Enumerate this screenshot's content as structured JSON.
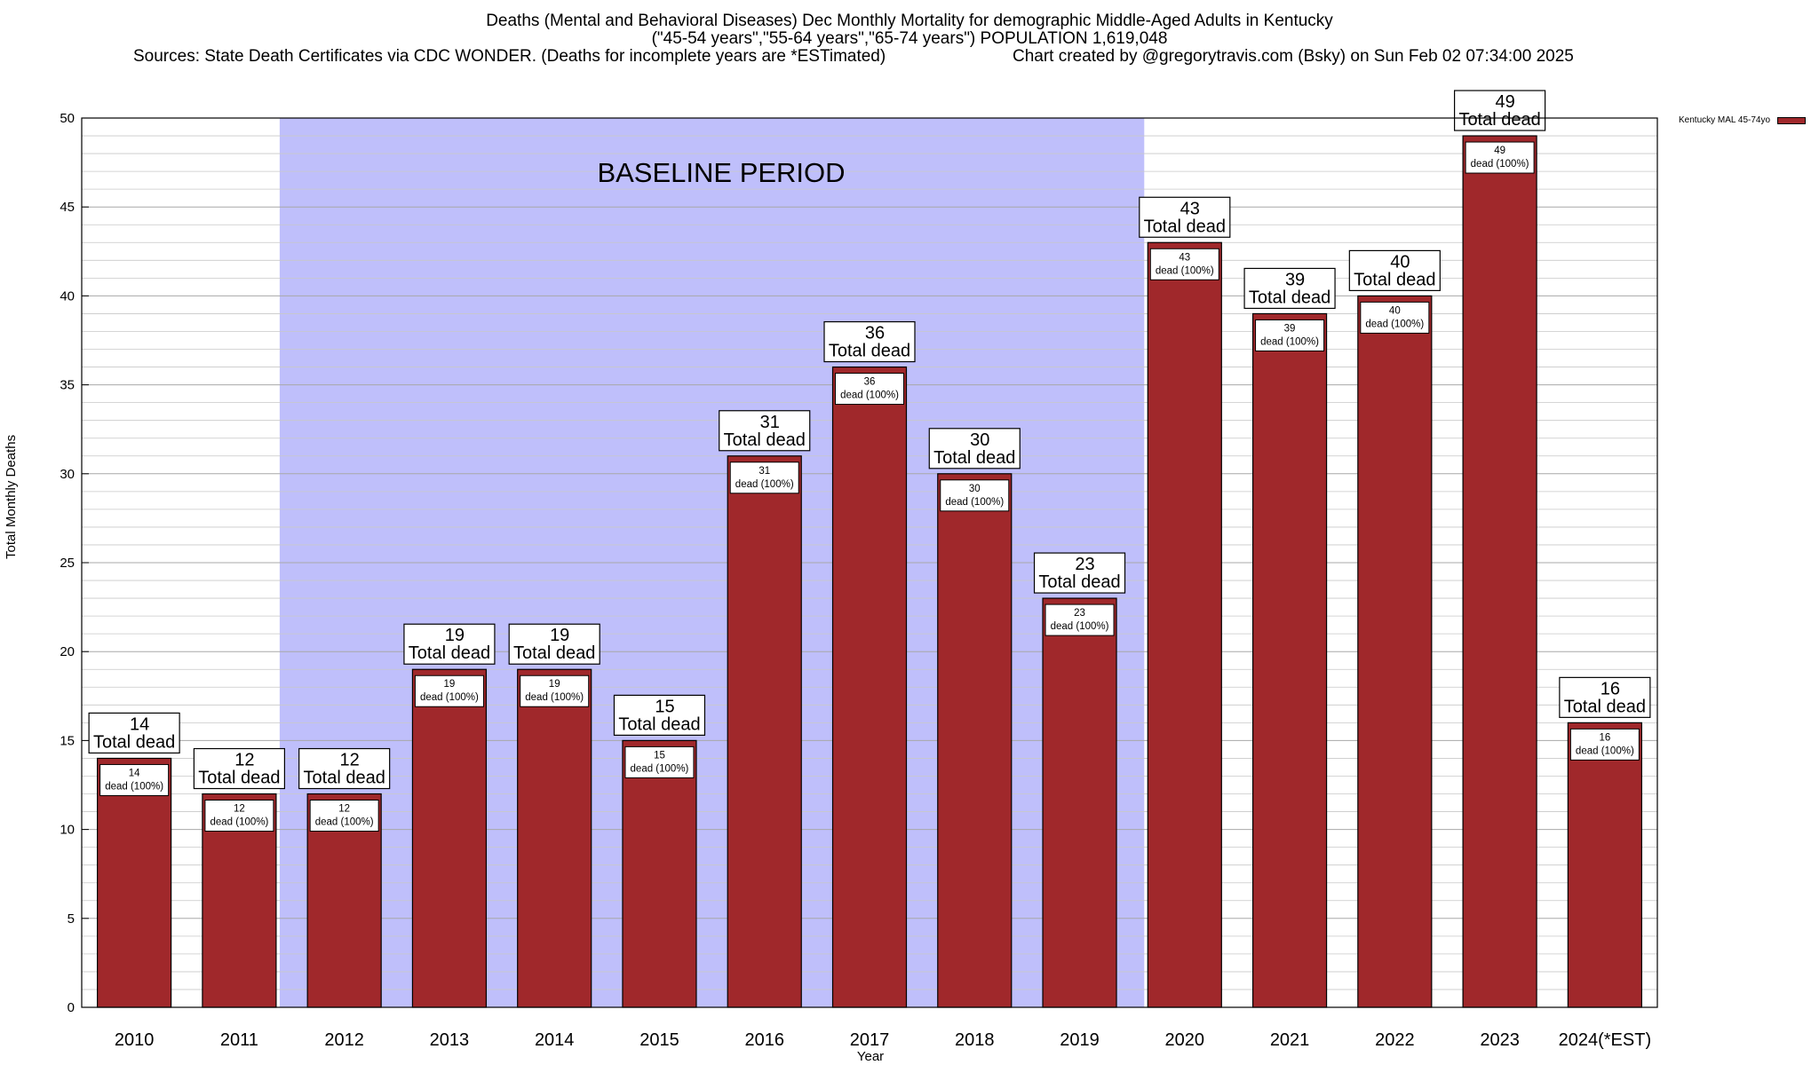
{
  "chart_data": {
    "type": "bar",
    "title": "Deaths (Mental and Behavioral Diseases) Dec Monthly Mortality for demographic Middle-Aged Adults in Kentucky",
    "subtitle": "(\"45-54 years\",\"55-64 years\",\"65-74 years\") POPULATION 1,619,048",
    "sources": "Sources: State Death Certificates via CDC WONDER. (Deaths for incomplete years are *ESTimated)",
    "credit": "Chart created by @gregorytravis.com (Bsky) on Sun Feb 02 07:34:00 2025",
    "xlabel": "Year",
    "ylabel": "Total Monthly Deaths",
    "ylim": [
      0,
      50
    ],
    "yticks": [
      0,
      5,
      10,
      15,
      20,
      25,
      30,
      35,
      40,
      45,
      50
    ],
    "grid": true,
    "categories": [
      "2010",
      "2011",
      "2012",
      "2013",
      "2014",
      "2015",
      "2016",
      "2017",
      "2018",
      "2019",
      "2020",
      "2021",
      "2022",
      "2023",
      "2024(*EST)"
    ],
    "series": [
      {
        "name": "Kentucky MAL 45-74yo",
        "values": [
          14,
          12,
          12,
          19,
          19,
          15,
          31,
          36,
          30,
          23,
          43,
          39,
          40,
          49,
          16
        ]
      }
    ],
    "total_label": "Total dead",
    "inner_label_suffix": "dead (100%)",
    "baseline": {
      "label": "BASELINE PERIOD",
      "from": "2012",
      "to": "2019"
    },
    "legend_position": "top-right",
    "colors": {
      "bar": "#A0282B",
      "baseline_shade": "#BFBFFB",
      "grid": "#A8A8A8"
    }
  }
}
